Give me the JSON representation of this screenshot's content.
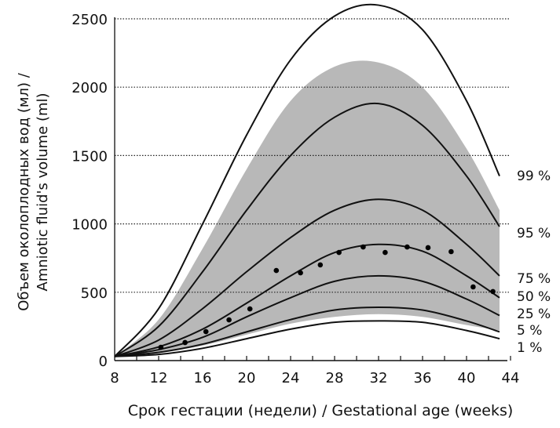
{
  "chart_data": {
    "type": "line",
    "xlabel": "Срок гестации (недели) / Gestational age (weeks)",
    "ylabel_line1": "Объем околоплодных вод (мл) /",
    "ylabel_line2": "Amniotic fluid's volume (ml)",
    "xlim": [
      8,
      44
    ],
    "ylim": [
      0,
      2500
    ],
    "xticks": [
      8,
      12,
      16,
      20,
      24,
      28,
      32,
      36,
      40,
      44
    ],
    "yticks": [
      0,
      500,
      1000,
      1500,
      2000,
      2500
    ],
    "grid": "horizontal dotted",
    "x": [
      8,
      12,
      16,
      20,
      24,
      28,
      32,
      36,
      40,
      43
    ],
    "series": [
      {
        "name": "99 %",
        "values": [
          30,
          380,
          1000,
          1650,
          2200,
          2520,
          2600,
          2420,
          1900,
          1350
        ]
      },
      {
        "name": "95 %",
        "values": [
          30,
          250,
          650,
          1100,
          1500,
          1780,
          1880,
          1720,
          1350,
          980
        ]
      },
      {
        "name": "75 %",
        "values": [
          30,
          150,
          380,
          650,
          900,
          1100,
          1180,
          1100,
          850,
          620
        ]
      },
      {
        "name": "50 %",
        "values": [
          30,
          100,
          230,
          420,
          620,
          790,
          850,
          800,
          620,
          460
        ]
      },
      {
        "name": "25 %",
        "values": [
          30,
          80,
          170,
          320,
          460,
          580,
          620,
          580,
          450,
          330
        ]
      },
      {
        "name": "5 %",
        "values": [
          30,
          60,
          120,
          210,
          300,
          370,
          390,
          370,
          290,
          210
        ]
      },
      {
        "name": "1 %",
        "values": [
          30,
          45,
          90,
          160,
          230,
          280,
          290,
          280,
          220,
          160
        ]
      }
    ],
    "band": {
      "upper": [
        30,
        300,
        820,
        1400,
        1900,
        2150,
        2180,
        2000,
        1550,
        1100
      ],
      "lower": [
        30,
        55,
        110,
        190,
        270,
        320,
        340,
        320,
        260,
        220
      ],
      "color": "#b8b8b8"
    },
    "points": [
      [
        12.2,
        97
      ],
      [
        14.4,
        132
      ],
      [
        16.3,
        212
      ],
      [
        18.4,
        298
      ],
      [
        20.3,
        378
      ],
      [
        22.7,
        659
      ],
      [
        24.9,
        642
      ],
      [
        26.7,
        700
      ],
      [
        28.4,
        791
      ],
      [
        30.6,
        831
      ],
      [
        32.6,
        791
      ],
      [
        34.6,
        831
      ],
      [
        36.5,
        826
      ],
      [
        38.6,
        797
      ],
      [
        40.6,
        539
      ],
      [
        42.4,
        505
      ]
    ]
  }
}
